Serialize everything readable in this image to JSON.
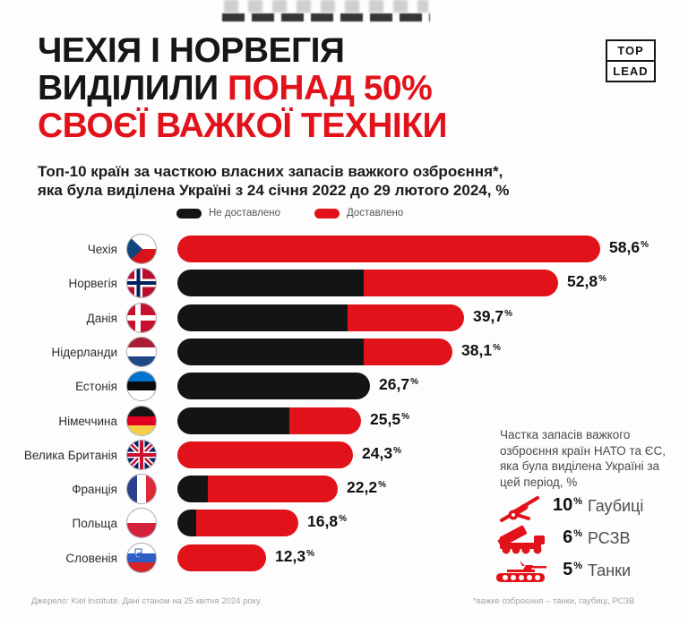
{
  "page": {
    "background": "#fdfdfd"
  },
  "header": {
    "title": {
      "line1": "ЧЕХІЯ І НОРВЕГІЯ",
      "line2_black": "ВИДІЛИЛИ ",
      "line2_red": "ПОНАД 50%",
      "line3": "СВОЄЇ ВАЖКОЇ ТЕХНІКИ"
    },
    "logo": {
      "top": "TOP",
      "bottom": "LEAD"
    }
  },
  "subtitle": {
    "line1": "Топ-10 країн за часткою власних запасів важкого озброєння*,",
    "line2": "яка була виділена Україні з 24 січня 2022 до 29 лютого 2024, %"
  },
  "legend": {
    "not_delivered": "Не доставлено",
    "delivered": "Доставлено"
  },
  "colors": {
    "bar_red": "#e2121b",
    "bar_black": "#141414",
    "title_red": "#e2121b",
    "title_black": "#161616"
  },
  "chart_data": {
    "type": "bar",
    "orientation": "horizontal",
    "unit": "%",
    "title": "Топ-10 країн за часткою власних запасів важкого озброєння, яка була виділена Україні з 24 січня 2022 до 29 лютого 2024, %",
    "xlim": [
      0,
      60
    ],
    "categories": [
      "Чехія",
      "Норвегія",
      "Данія",
      "Нідерланди",
      "Естонія",
      "Німеччина",
      "Велика Британія",
      "Франція",
      "Польща",
      "Словенія"
    ],
    "totals": [
      58.6,
      52.8,
      39.7,
      38.1,
      26.7,
      25.5,
      24.3,
      22.2,
      16.8,
      12.3
    ],
    "series": [
      {
        "name": "Не доставлено",
        "color": "#141414",
        "values_estimated": [
          0,
          25.8,
          23.6,
          25.8,
          26.7,
          15.5,
          0,
          4.2,
          2.6,
          0
        ]
      },
      {
        "name": "Доставлено",
        "color": "#e2121b",
        "values_estimated": [
          58.6,
          27.0,
          16.1,
          12.3,
          0,
          10.0,
          24.3,
          18.0,
          14.2,
          12.3
        ]
      }
    ],
    "rows": [
      {
        "label": "Чехія",
        "flag": "czechia",
        "total": 58.6,
        "undelivered": 0,
        "value_label": "58,6"
      },
      {
        "label": "Норвегія",
        "flag": "norway",
        "total": 52.8,
        "undelivered": 25.8,
        "value_label": "52,8"
      },
      {
        "label": "Данія",
        "flag": "denmark",
        "total": 39.7,
        "undelivered": 23.6,
        "value_label": "39,7"
      },
      {
        "label": "Нідерланди",
        "flag": "netherlands",
        "total": 38.1,
        "undelivered": 25.8,
        "value_label": "38,1"
      },
      {
        "label": "Естонія",
        "flag": "estonia",
        "total": 26.7,
        "undelivered": 26.7,
        "value_label": "26,7"
      },
      {
        "label": "Німеччина",
        "flag": "germany",
        "total": 25.5,
        "undelivered": 15.5,
        "value_label": "25,5"
      },
      {
        "label": "Велика Британія",
        "flag": "uk",
        "total": 24.3,
        "undelivered": 0,
        "value_label": "24,3"
      },
      {
        "label": "Франція",
        "flag": "france",
        "total": 22.2,
        "undelivered": 4.2,
        "value_label": "22,2"
      },
      {
        "label": "Польща",
        "flag": "poland",
        "total": 16.8,
        "undelivered": 2.6,
        "value_label": "16,8"
      },
      {
        "label": "Словенія",
        "flag": "slovenia",
        "total": 12.3,
        "undelivered": 0,
        "value_label": "12,3"
      }
    ]
  },
  "note": {
    "text": "Частка запасів важкого озброєння країн НАТО та ЄС, яка була виділена Україні за цей період, %"
  },
  "stats": [
    {
      "icon": "howitzer-icon",
      "value": "10",
      "label": "Гаубиці"
    },
    {
      "icon": "mlrs-icon",
      "value": "6",
      "label": "РСЗВ"
    },
    {
      "icon": "tank-icon",
      "value": "5",
      "label": "Танки"
    }
  ],
  "footer": {
    "source": "Джерело: Kiel Institute. Дані станом на 25 квітня 2024 року.",
    "footnote": "*важке озброєння – танки, гаубиці, РСЗВ"
  }
}
